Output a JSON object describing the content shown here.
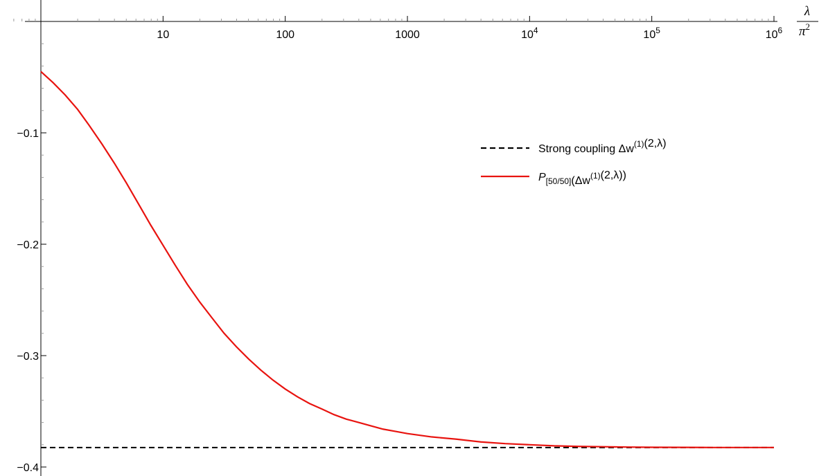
{
  "chart_data": {
    "type": "line",
    "title": "",
    "x_scale": "log",
    "xlim": [
      1,
      1000000
    ],
    "ylim": [
      -0.4,
      0
    ],
    "grid": false,
    "legend_placement": "right-middle",
    "xlabel": {
      "numerator": "λ",
      "denominator": "π",
      "denominator_sup": "2"
    },
    "ylabel": "",
    "x_ticks": [
      {
        "value": 10,
        "label": "10",
        "sup": ""
      },
      {
        "value": 100,
        "label": "100",
        "sup": ""
      },
      {
        "value": 1000,
        "label": "1000",
        "sup": ""
      },
      {
        "value": 10000,
        "label": "10",
        "sup": "4"
      },
      {
        "value": 100000,
        "label": "10",
        "sup": "5"
      },
      {
        "value": 1000000,
        "label": "10",
        "sup": "6"
      }
    ],
    "y_ticks": [
      {
        "value": -0.1,
        "label": "−0.1"
      },
      {
        "value": -0.2,
        "label": "−0.2"
      },
      {
        "value": -0.3,
        "label": "−0.3"
      },
      {
        "value": -0.4,
        "label": "−0.4"
      }
    ],
    "series": [
      {
        "key": "strong",
        "style": "dashed",
        "color": "#000000",
        "legend": [
          {
            "text": "Strong coupling Δw"
          },
          {
            "text": "(1)",
            "sup": true
          },
          {
            "text": "(2,λ)"
          }
        ],
        "x": [
          1,
          1000000
        ],
        "y": [
          -0.3825,
          -0.3825
        ]
      },
      {
        "key": "pade",
        "style": "solid",
        "color": "#e8130f",
        "legend": [
          {
            "text": "P",
            "italic": true
          },
          {
            "text": "[50/50]",
            "sub": true
          },
          {
            "text": "(Δw"
          },
          {
            "text": "(1)",
            "sup": true
          },
          {
            "text": "(2,λ))"
          }
        ],
        "x": [
          1,
          1.26,
          1.58,
          2,
          2.51,
          3.16,
          3.98,
          5.01,
          6.31,
          7.94,
          10,
          12.6,
          15.8,
          20,
          25.1,
          31.6,
          39.8,
          50.1,
          63.1,
          79.4,
          100,
          126,
          158,
          200,
          251,
          316,
          398,
          501,
          631,
          794,
          1000,
          1585,
          2512,
          3981,
          6310,
          10000,
          15850,
          25120,
          39810,
          63100,
          100000,
          177800,
          316200,
          562300,
          1000000
        ],
        "y": [
          -0.045,
          -0.055,
          -0.066,
          -0.079,
          -0.094,
          -0.11,
          -0.127,
          -0.145,
          -0.164,
          -0.183,
          -0.201,
          -0.219,
          -0.236,
          -0.252,
          -0.266,
          -0.28,
          -0.292,
          -0.303,
          -0.313,
          -0.322,
          -0.33,
          -0.337,
          -0.343,
          -0.348,
          -0.353,
          -0.357,
          -0.36,
          -0.363,
          -0.366,
          -0.368,
          -0.37,
          -0.373,
          -0.375,
          -0.3775,
          -0.379,
          -0.38,
          -0.381,
          -0.3815,
          -0.3818,
          -0.3821,
          -0.3823,
          -0.3824,
          -0.3825,
          -0.3825,
          -0.3825
        ]
      }
    ]
  }
}
